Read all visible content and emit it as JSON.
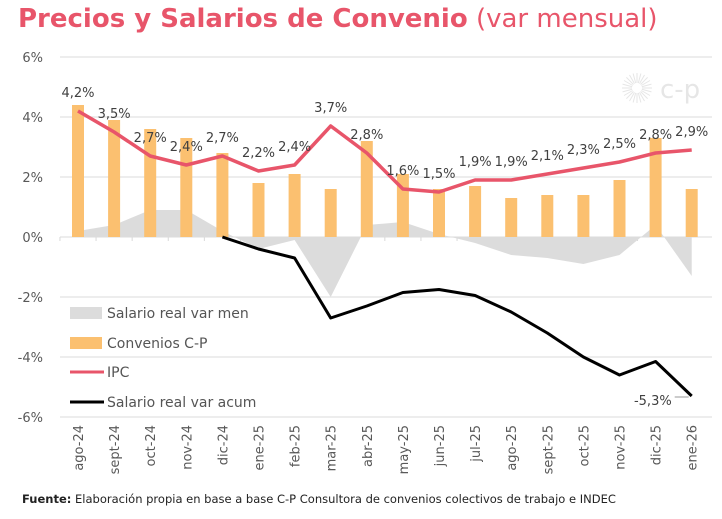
{
  "title": {
    "bold": "Precios y Salarios de Convenio",
    "light": "(var mensual)"
  },
  "logo": {
    "text": "c-p"
  },
  "footer": {
    "label": "Fuente:",
    "text": "Elaboración propia en base a base C-P Consultora de convenios colectivos de trabajo e INDEC"
  },
  "chart_data": {
    "type": "bar",
    "title": "Precios y Salarios de Convenio (var mensual)",
    "xlabel": "",
    "ylabel": "",
    "ylim": [
      -6,
      6
    ],
    "yticks": [
      6,
      4,
      2,
      0,
      -2,
      -4,
      -6
    ],
    "ytick_labels": [
      "6%",
      "4%",
      "2%",
      "0%",
      "-2%",
      "-4%",
      "-6%"
    ],
    "grid": true,
    "legend_position": "bottom-left",
    "categories": [
      "ago-24",
      "sept-24",
      "oct-24",
      "nov-24",
      "dic-24",
      "ene-25",
      "feb-25",
      "mar-25",
      "abr-25",
      "may-25",
      "jun-25",
      "jul-25",
      "ago-25",
      "sept-25",
      "oct-25",
      "nov-25",
      "dic-25",
      "ene-26"
    ],
    "series": [
      {
        "name": "Salario real var men",
        "type": "area",
        "color": "#dcdcdc",
        "values": [
          0.2,
          0.4,
          0.9,
          0.9,
          0.2,
          -0.4,
          -0.1,
          -2.0,
          0.4,
          0.5,
          0.1,
          -0.2,
          -0.6,
          -0.7,
          -0.9,
          -0.6,
          0.4,
          -1.3
        ]
      },
      {
        "name": "Convenios C-P",
        "type": "bar",
        "color": "#fbc070",
        "values": [
          4.4,
          3.9,
          3.6,
          3.3,
          2.8,
          1.8,
          2.1,
          1.6,
          3.2,
          2.1,
          1.6,
          1.7,
          1.3,
          1.4,
          1.4,
          1.9,
          3.3,
          1.6
        ]
      },
      {
        "name": "IPC",
        "type": "line",
        "color": "#e8556a",
        "values": [
          4.2,
          3.5,
          2.7,
          2.4,
          2.7,
          2.2,
          2.4,
          3.7,
          2.8,
          1.6,
          1.5,
          1.9,
          1.9,
          2.1,
          2.3,
          2.5,
          2.8,
          2.9
        ],
        "labels": [
          "4,2%",
          "3,5%",
          "2,7%",
          "2,4%",
          "2,7%",
          "2,2%",
          "2,4%",
          "3,7%",
          "2,8%",
          "1,6%",
          "1,5%",
          "1,9%",
          "1,9%",
          "2,1%",
          "2,3%",
          "2,5%",
          "2,8%",
          "2,9%"
        ]
      },
      {
        "name": "Salario real var acum",
        "type": "line",
        "color": "#000000",
        "values": [
          null,
          null,
          null,
          null,
          0.0,
          -0.4,
          -0.7,
          -2.7,
          -2.3,
          -1.85,
          -1.75,
          -1.95,
          -2.5,
          -3.2,
          -4.0,
          -4.6,
          -4.15,
          -5.3
        ],
        "end_label": "-5,3%"
      }
    ]
  }
}
